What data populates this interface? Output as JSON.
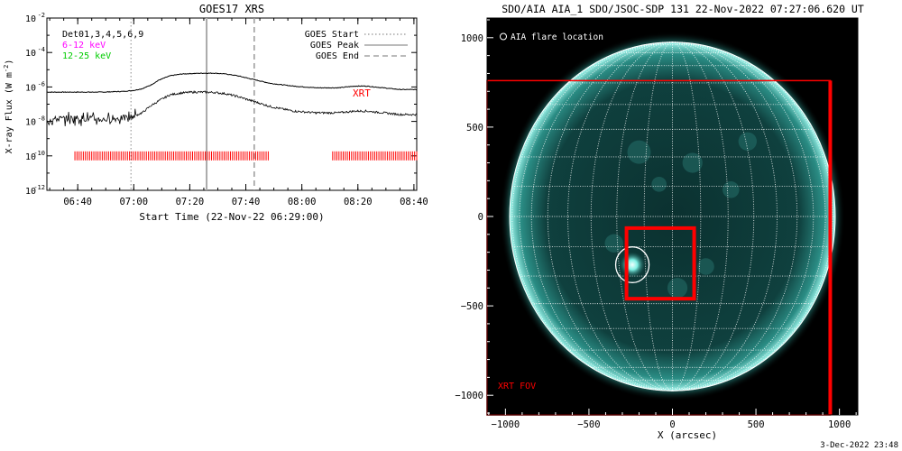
{
  "chart_data": [
    {
      "type": "line",
      "title": "GOES17 XRS",
      "xlabel": "Start Time (22-Nov-22 06:29:00)",
      "ylabel": "X-ray Flux (W m",
      "ylabel_sup": "-2",
      "ylabel_close": ")",
      "log_y": true,
      "ylim_exponent": [
        -12,
        -2
      ],
      "y_ticks": [
        {
          "base": "10",
          "exp": "-2",
          "value": -2
        },
        {
          "base": "10",
          "exp": "-4",
          "value": -4
        },
        {
          "base": "10",
          "exp": "-6",
          "value": -6
        },
        {
          "base": "10",
          "exp": "-8",
          "value": -8
        },
        {
          "base": "10",
          "exp": "-10",
          "value": -10
        },
        {
          "base": "10",
          "exp": "-12",
          "value": -12
        }
      ],
      "x_range_min": [
        0,
        132
      ],
      "x_ticks": [
        {
          "label": "06:40",
          "t": 11
        },
        {
          "label": "07:00",
          "t": 31
        },
        {
          "label": "07:20",
          "t": 51
        },
        {
          "label": "07:40",
          "t": 71
        },
        {
          "label": "08:00",
          "t": 91
        },
        {
          "label": "08:20",
          "t": 111
        },
        {
          "label": "08:40",
          "t": 131
        }
      ],
      "det_label": "Det01,3,4,5,6,9",
      "channel_labels": [
        {
          "text": "6-12 keV",
          "color": "#ff00ff"
        },
        {
          "text": "12-25 keV",
          "color": "#00cc00"
        }
      ],
      "legend": {
        "placement": "top-right",
        "entries": [
          {
            "label": "GOES Start",
            "style": "dotted"
          },
          {
            "label": "GOES Peak",
            "style": "solid"
          },
          {
            "label": "GOES End",
            "style": "dashed"
          }
        ]
      },
      "goes_start_min": 30,
      "goes_peak_min": 57,
      "goes_end_min": 74,
      "series": [
        {
          "color": "#000000",
          "t": [
            0,
            10,
            20,
            28,
            31,
            34,
            37,
            40,
            44,
            48,
            52,
            56,
            60,
            64,
            68,
            72,
            76,
            80,
            88,
            96,
            104,
            110,
            114,
            120,
            126,
            132
          ],
          "log_flux": [
            -6.3,
            -6.3,
            -6.3,
            -6.25,
            -6.2,
            -6.1,
            -5.9,
            -5.6,
            -5.35,
            -5.25,
            -5.22,
            -5.2,
            -5.2,
            -5.25,
            -5.35,
            -5.5,
            -5.65,
            -5.8,
            -5.95,
            -6.05,
            -6.05,
            -5.95,
            -5.95,
            -6.05,
            -6.15,
            -6.15
          ]
        },
        {
          "color": "#000000",
          "t": [
            0,
            10,
            20,
            28,
            31,
            34,
            37,
            40,
            44,
            48,
            52,
            56,
            60,
            64,
            68,
            72,
            76,
            80,
            88,
            96,
            104,
            110,
            114,
            120,
            126,
            132
          ],
          "log_flux": [
            -7.9,
            -7.8,
            -7.9,
            -7.8,
            -7.7,
            -7.5,
            -7.1,
            -6.8,
            -6.45,
            -6.35,
            -6.3,
            -6.3,
            -6.32,
            -6.4,
            -6.55,
            -6.75,
            -6.95,
            -7.15,
            -7.4,
            -7.5,
            -7.5,
            -7.4,
            -7.4,
            -7.5,
            -7.6,
            -7.6
          ]
        }
      ],
      "xrt_label": "XRT",
      "xrt_color": "#ff0000",
      "xrt_log_flux": -10,
      "xrt_intervals_min": [
        [
          10,
          79
        ],
        [
          102,
          132
        ]
      ]
    },
    {
      "type": "scatter",
      "title": "SDO/AIA AIA_1 SDO/JSOC-SDP 131 22-Nov-2022 07:27:06.620 UT",
      "xlabel": "X (arcsec)",
      "ylabel": "",
      "xlim": [
        -1110,
        1110
      ],
      "ylim": [
        -1110,
        1110
      ],
      "x_ticks": [
        -1000,
        -500,
        0,
        500,
        1000
      ],
      "y_ticks": [
        -1000,
        -500,
        0,
        500,
        1000
      ],
      "x_tick_labels": [
        "−1000",
        "−500",
        "0",
        "500",
        "1000"
      ],
      "y_tick_labels": [
        "−1000",
        "−500",
        "0",
        "500",
        "1000"
      ],
      "solar_radius_arcsec": 975,
      "grid_step_deg": 10,
      "disk_color": "#0e3b3a",
      "limb_color": "#8ff5ea",
      "legend_text": "AIA flare location",
      "flare_location": {
        "x": -240,
        "y": -270,
        "radius": 100
      },
      "xrt_fov_label": "XRT FOV",
      "xrt_fov_box": {
        "x0": -1110,
        "y0": -1110,
        "x1": 945,
        "y1": 760
      },
      "xrt_pointing_box": {
        "x0": -275,
        "y0": -460,
        "x1": 130,
        "y1": -65
      },
      "box_color": "#ff0000",
      "footer": "3-Dec-2022 23:48"
    }
  ]
}
